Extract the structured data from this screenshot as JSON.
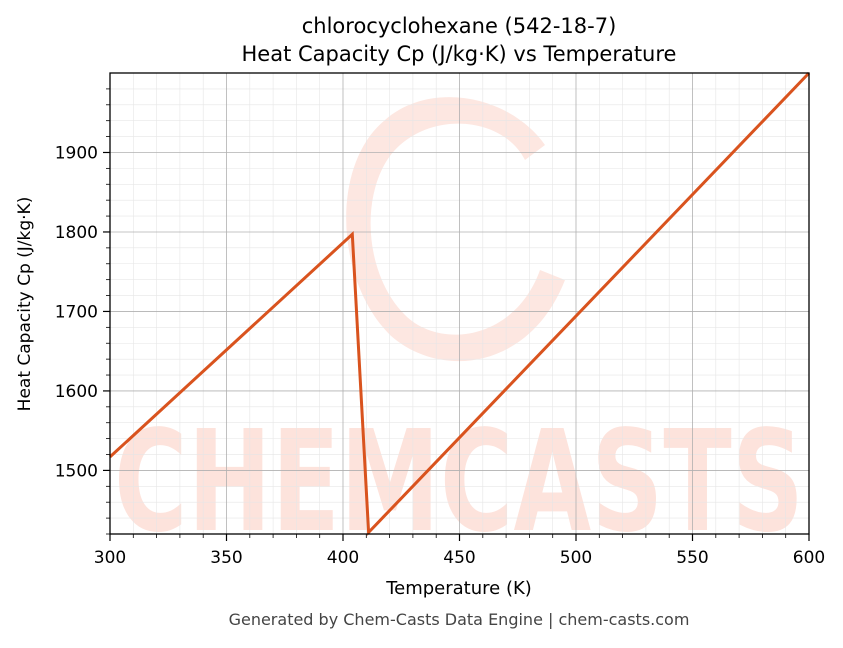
{
  "chart_data": {
    "type": "line",
    "title": "chlorocyclohexane (542-18-7)",
    "subtitle": "Heat Capacity Cp (J/kg·K) vs Temperature",
    "xlabel": "Temperature (K)",
    "ylabel": "Heat Capacity Cp (J/kg·K)",
    "xlim": [
      300,
      600
    ],
    "ylim": [
      1420,
      2000
    ],
    "x_ticks": [
      300,
      350,
      400,
      450,
      500,
      550,
      600
    ],
    "y_ticks": [
      1500,
      1600,
      1700,
      1800,
      1900
    ],
    "x_tick_labels": [
      "300",
      "350",
      "400",
      "450",
      "500",
      "550",
      "600"
    ],
    "y_tick_labels": [
      "1500",
      "1600",
      "1700",
      "1800",
      "1900"
    ],
    "grid": true,
    "legend": "none",
    "series": [
      {
        "color": "#d9531e",
        "points": [
          {
            "x": 300,
            "y": 1517
          },
          {
            "x": 404,
            "y": 1797
          },
          {
            "x": 411,
            "y": 1422
          },
          {
            "x": 600,
            "y": 2000
          }
        ]
      }
    ]
  },
  "watermark": {
    "text": "CHEMCASTS",
    "color": "#fde3dc"
  },
  "footer": "Generated by Chem-Casts Data Engine | chem-casts.com"
}
